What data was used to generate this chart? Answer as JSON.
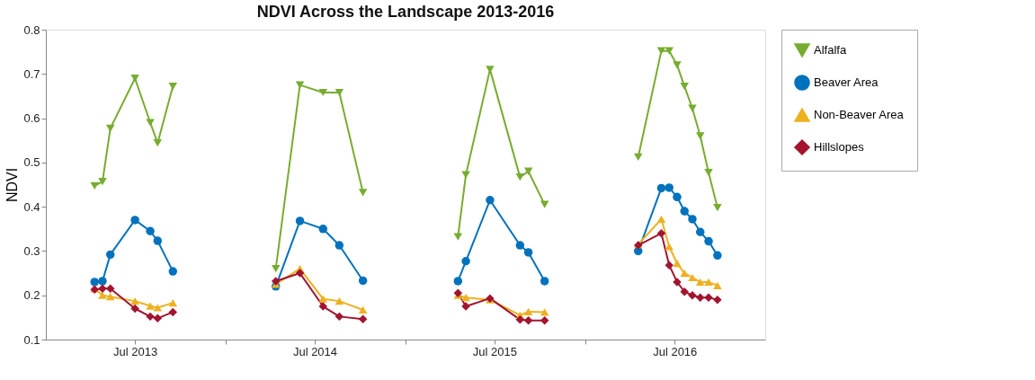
{
  "chart_data": {
    "type": "line",
    "title": "NDVI Across the Landscape 2013-2016",
    "ylabel": "NDVI",
    "x": [
      "2013-04-10",
      "2013-04-26",
      "2013-05-12",
      "2013-07-01",
      "2013-08-01",
      "2013-08-16",
      "2013-09-16",
      "2014-01-01",
      "2014-04-13",
      "2014-06-01",
      "2014-07-18",
      "2014-08-20",
      "2014-10-07",
      "2015-01-01",
      "2015-04-18",
      "2015-05-04",
      "2015-06-22",
      "2015-08-22",
      "2015-09-08",
      "2015-10-11",
      "2016-01-01",
      "2016-04-18",
      "2016-06-04",
      "2016-06-20",
      "2016-07-06",
      "2016-07-21",
      "2016-08-06",
      "2016-08-22",
      "2016-09-08",
      "2016-09-26"
    ],
    "series": [
      {
        "name": "Alfalfa",
        "color": "#77ac30",
        "marker": "triangle-down",
        "values": [
          0.447,
          0.457,
          0.577,
          0.69,
          0.59,
          0.544,
          0.672,
          null,
          0.26,
          0.675,
          0.658,
          0.658,
          0.432,
          null,
          0.332,
          0.472,
          0.71,
          0.467,
          0.48,
          0.405,
          null,
          0.512,
          0.752,
          0.752,
          0.72,
          0.672,
          0.622,
          0.56,
          0.477,
          0.398
        ]
      },
      {
        "name": "Beaver Area",
        "color": "#0072bd",
        "marker": "circle",
        "values": [
          0.23,
          0.232,
          0.292,
          0.37,
          0.345,
          0.323,
          0.254,
          null,
          0.22,
          0.368,
          0.35,
          0.313,
          0.233,
          null,
          0.232,
          0.277,
          0.415,
          0.313,
          0.297,
          0.232,
          null,
          0.3,
          0.442,
          0.443,
          0.422,
          0.39,
          0.372,
          0.343,
          0.322,
          0.29
        ]
      },
      {
        "name": "Non-Beaver Area",
        "color": "#edb120",
        "marker": "triangle",
        "values": [
          0.215,
          0.2,
          0.197,
          0.187,
          0.176,
          0.172,
          0.183,
          null,
          0.225,
          0.26,
          0.192,
          0.187,
          0.167,
          null,
          0.2,
          0.195,
          0.19,
          0.155,
          0.163,
          0.162,
          null,
          0.315,
          0.372,
          0.31,
          0.272,
          0.25,
          0.24,
          0.23,
          0.23,
          0.222
        ]
      },
      {
        "name": "Hillslopes",
        "color": "#a2142f",
        "marker": "diamond",
        "values": [
          0.213,
          0.215,
          0.215,
          0.17,
          0.152,
          0.148,
          0.162,
          null,
          0.232,
          0.25,
          0.175,
          0.152,
          0.146,
          null,
          0.205,
          0.175,
          0.193,
          0.145,
          0.143,
          0.143,
          null,
          0.313,
          0.34,
          0.268,
          0.23,
          0.208,
          0.2,
          0.195,
          0.195,
          0.19
        ]
      }
    ],
    "xlim": [
      "2013-01-01",
      "2017-01-01"
    ],
    "xticks": [
      {
        "value": "2013-07-01",
        "label": "Jul 2013"
      },
      {
        "value": "2014-01-01",
        "label": null
      },
      {
        "value": "2014-07-01",
        "label": "Jul 2014"
      },
      {
        "value": "2015-01-01",
        "label": null
      },
      {
        "value": "2015-07-01",
        "label": "Jul 2015"
      },
      {
        "value": "2016-01-01",
        "label": null
      },
      {
        "value": "2016-07-01",
        "label": "Jul 2016"
      }
    ],
    "ylim": [
      0.1,
      0.8
    ],
    "yticks": [
      0.1,
      0.2,
      0.3,
      0.4,
      0.5,
      0.6,
      0.7,
      0.8
    ],
    "grid": false,
    "legend": "top right",
    "line_style": "solid"
  }
}
